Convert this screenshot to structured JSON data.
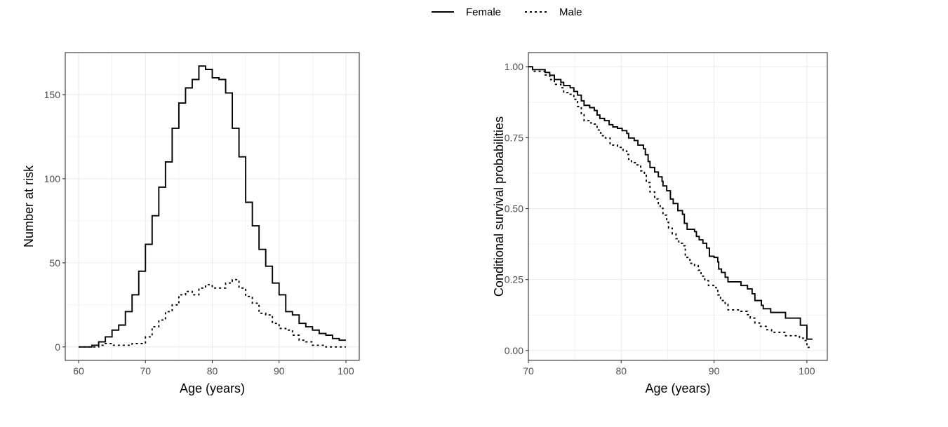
{
  "legend": {
    "entries": [
      {
        "label": "Female",
        "linetype": "solid"
      },
      {
        "label": "Male",
        "linetype": "dotted"
      }
    ],
    "placement": "top-center"
  },
  "colors": {
    "series": "#000000",
    "grid": "#ebebeb",
    "border": "#333333",
    "tick_text": "#4d4d4d"
  },
  "chart_data": [
    {
      "type": "line",
      "step": true,
      "title": "",
      "xlabel": "Age (years)",
      "ylabel": "Number at risk",
      "xlim": [
        58,
        102
      ],
      "ylim": [
        -8,
        175
      ],
      "xticks": [
        60,
        70,
        80,
        90,
        100
      ],
      "xtick_labels": [
        "60",
        "70",
        "80",
        "90",
        "100"
      ],
      "yticks": [
        0,
        50,
        100,
        150
      ],
      "ytick_labels": [
        "0",
        "50",
        "100",
        "150"
      ],
      "grid": true,
      "x": [
        60,
        61,
        62,
        63,
        64,
        65,
        66,
        67,
        68,
        69,
        70,
        71,
        72,
        73,
        74,
        75,
        76,
        77,
        78,
        79,
        80,
        81,
        82,
        83,
        84,
        85,
        86,
        87,
        88,
        89,
        90,
        91,
        92,
        93,
        94,
        95,
        96,
        97,
        98,
        99,
        100
      ],
      "series": [
        {
          "name": "Female",
          "values": [
            0,
            0,
            1,
            3,
            6,
            10,
            13,
            21,
            31,
            45,
            61,
            78,
            95,
            110,
            130,
            145,
            154,
            159,
            167,
            165,
            160,
            159,
            151,
            130,
            113,
            86,
            72,
            58,
            48,
            38,
            31,
            21,
            19,
            14,
            12,
            10,
            8,
            7,
            5,
            4,
            4
          ]
        },
        {
          "name": "Male",
          "values": [
            0,
            0,
            0,
            1,
            2,
            1,
            1,
            1,
            2,
            2,
            6,
            12,
            16,
            21,
            25,
            31,
            33,
            31,
            35,
            37,
            35,
            35,
            38,
            40,
            35,
            30,
            26,
            20,
            19,
            14,
            11,
            10,
            7,
            4,
            3,
            1,
            1,
            0,
            0,
            0,
            0
          ]
        }
      ]
    },
    {
      "type": "line",
      "step": true,
      "title": "",
      "xlabel": "Age (years)",
      "ylabel": "Conditional survival probabilities",
      "xlim": [
        70,
        102.2
      ],
      "ylim": [
        -0.035,
        1.05
      ],
      "xticks": [
        70,
        80,
        90,
        100
      ],
      "xtick_labels": [
        "70",
        "80",
        "90",
        "100"
      ],
      "yticks": [
        0,
        0.25,
        0.5,
        0.75,
        1.0
      ],
      "ytick_labels": [
        "0.00",
        "0.25",
        "0.50",
        "0.75",
        "1.00"
      ],
      "grid": true,
      "series": [
        {
          "name": "Female",
          "x": [
            70,
            70.45,
            71.8,
            72.3,
            72.8,
            73.5,
            73.8,
            74.5,
            74.9,
            75.3,
            75.7,
            76.0,
            76.6,
            77.1,
            77.4,
            77.7,
            78.2,
            78.7,
            79.1,
            79.6,
            80.1,
            80.6,
            80.8,
            81.4,
            81.8,
            82.4,
            82.6,
            82.9,
            83.1,
            83.6,
            84.0,
            84.4,
            84.5,
            84.9,
            85.3,
            85.6,
            86.1,
            86.6,
            86.8,
            87.1,
            87.9,
            88.1,
            88.4,
            88.8,
            89.2,
            89.5,
            90.0,
            90.4,
            90.5,
            90.8,
            91.2,
            91.5,
            92.9,
            93.6,
            94.1,
            94.4,
            95.1,
            95.3,
            96.1,
            97.7,
            99.3,
            100.0,
            100.6
          ],
          "values": [
            1.0,
            0.99,
            0.98,
            0.97,
            0.955,
            0.945,
            0.934,
            0.926,
            0.913,
            0.9,
            0.88,
            0.864,
            0.856,
            0.846,
            0.83,
            0.818,
            0.81,
            0.796,
            0.788,
            0.783,
            0.775,
            0.765,
            0.749,
            0.74,
            0.724,
            0.711,
            0.69,
            0.666,
            0.645,
            0.629,
            0.612,
            0.596,
            0.58,
            0.563,
            0.534,
            0.518,
            0.493,
            0.48,
            0.448,
            0.427,
            0.419,
            0.402,
            0.39,
            0.378,
            0.361,
            0.332,
            0.328,
            0.312,
            0.287,
            0.275,
            0.258,
            0.242,
            0.229,
            0.217,
            0.2,
            0.176,
            0.159,
            0.147,
            0.134,
            0.114,
            0.089,
            0.04,
            0.04
          ]
        },
        {
          "name": "Male",
          "x": [
            70,
            70.45,
            71.8,
            72.3,
            72.8,
            73.5,
            73.8,
            74.5,
            74.9,
            75.3,
            75.7,
            76.0,
            76.6,
            77.1,
            77.4,
            77.8,
            78.3,
            78.8,
            79.6,
            80.2,
            80.6,
            80.8,
            81.1,
            81.7,
            82.1,
            82.5,
            82.7,
            83.1,
            83.6,
            84.0,
            84.2,
            84.5,
            84.9,
            85.1,
            85.5,
            85.9,
            86.2,
            86.6,
            86.9,
            87.4,
            87.9,
            88.3,
            88.6,
            89.0,
            89.4,
            90.2,
            90.4,
            90.7,
            91.2,
            91.5,
            92.9,
            93.6,
            93.9,
            94.4,
            94.9,
            95.7,
            96.2,
            97.7,
            99.2,
            99.6,
            100.0,
            100.3
          ],
          "values": [
            1.0,
            0.984,
            0.971,
            0.955,
            0.938,
            0.926,
            0.909,
            0.903,
            0.885,
            0.86,
            0.831,
            0.81,
            0.802,
            0.798,
            0.777,
            0.757,
            0.749,
            0.724,
            0.716,
            0.703,
            0.691,
            0.674,
            0.662,
            0.654,
            0.633,
            0.617,
            0.592,
            0.559,
            0.534,
            0.518,
            0.501,
            0.477,
            0.452,
            0.431,
            0.411,
            0.394,
            0.378,
            0.369,
            0.328,
            0.307,
            0.299,
            0.283,
            0.262,
            0.246,
            0.229,
            0.221,
            0.196,
            0.176,
            0.163,
            0.143,
            0.138,
            0.126,
            0.114,
            0.097,
            0.085,
            0.073,
            0.064,
            0.052,
            0.044,
            0.035,
            0.011,
            0.011
          ]
        }
      ]
    }
  ]
}
